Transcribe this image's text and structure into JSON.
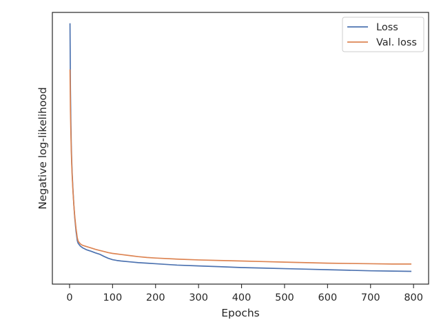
{
  "chart_data": {
    "type": "line",
    "title": "",
    "xlabel": "Epochs",
    "ylabel": "Negative log-likelihood",
    "xlim": [
      -40,
      835
    ],
    "ylim": [
      0,
      1
    ],
    "y_ticks_shown": false,
    "grid": false,
    "legend_position": "top-right",
    "x_ticks": [
      0,
      100,
      200,
      300,
      400,
      500,
      600,
      700,
      800
    ],
    "series": [
      {
        "name": "Loss",
        "color": "#4c72b0",
        "x": [
          1,
          2,
          3,
          4,
          5,
          6,
          8,
          10,
          12,
          15,
          18,
          20,
          25,
          30,
          40,
          50,
          60,
          70,
          80,
          90,
          100,
          110,
          120,
          140,
          160,
          180,
          200,
          250,
          300,
          350,
          400,
          450,
          500,
          550,
          600,
          650,
          700,
          750,
          795
        ],
        "y": [
          0.96,
          0.72,
          0.6,
          0.51,
          0.455,
          0.41,
          0.345,
          0.29,
          0.245,
          0.195,
          0.16,
          0.15,
          0.14,
          0.134,
          0.126,
          0.121,
          0.115,
          0.11,
          0.102,
          0.095,
          0.09,
          0.087,
          0.085,
          0.082,
          0.079,
          0.077,
          0.075,
          0.07,
          0.067,
          0.064,
          0.061,
          0.059,
          0.057,
          0.055,
          0.053,
          0.051,
          0.049,
          0.048,
          0.047
        ]
      },
      {
        "name": "Val. loss",
        "color": "#dd8452",
        "x": [
          1,
          2,
          3,
          4,
          5,
          6,
          8,
          10,
          12,
          15,
          18,
          20,
          25,
          30,
          40,
          50,
          60,
          70,
          80,
          90,
          100,
          110,
          120,
          140,
          160,
          180,
          200,
          250,
          300,
          350,
          400,
          450,
          500,
          550,
          600,
          650,
          700,
          750,
          795
        ],
        "y": [
          0.79,
          0.64,
          0.56,
          0.49,
          0.44,
          0.4,
          0.34,
          0.29,
          0.25,
          0.205,
          0.17,
          0.158,
          0.148,
          0.143,
          0.138,
          0.133,
          0.128,
          0.124,
          0.12,
          0.116,
          0.113,
          0.111,
          0.109,
          0.105,
          0.101,
          0.098,
          0.096,
          0.092,
          0.089,
          0.087,
          0.085,
          0.083,
          0.081,
          0.079,
          0.077,
          0.076,
          0.075,
          0.074,
          0.074
        ]
      }
    ]
  }
}
